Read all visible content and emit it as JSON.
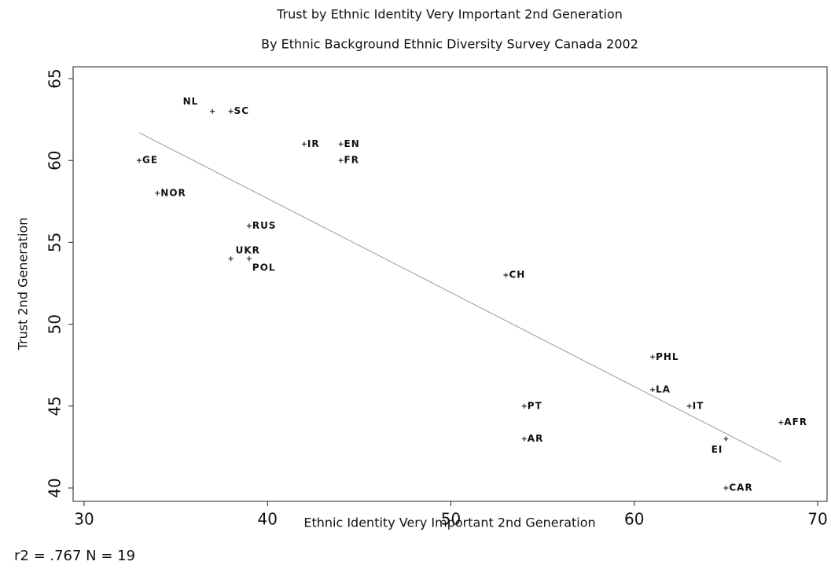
{
  "chart_data": {
    "type": "scatter",
    "title": "Trust by Ethnic Identity Very Important 2nd Generation",
    "subtitle": "By Ethnic Background Ethnic Diversity Survey Canada 2002",
    "x_label": "Ethnic Identity Very Important 2nd Generation",
    "y_label": "Trust 2nd Generation",
    "annotation": "r2 = .767  N = 19",
    "labels": [
      "NL",
      "SC",
      "IR",
      "EN",
      "FR",
      "GE",
      "NOR",
      "RUS",
      "UKR",
      "POL",
      "CH",
      "PHL",
      "LA",
      "IT",
      "PT",
      "AR",
      "AFR",
      "EI",
      "CAR"
    ],
    "x": [
      37,
      38,
      42,
      44,
      44,
      33,
      34,
      39,
      38,
      39,
      53,
      61,
      61,
      63,
      54,
      54,
      68,
      65,
      65
    ],
    "y": [
      63,
      63,
      61,
      61,
      60,
      60,
      58,
      56,
      54,
      54,
      53,
      48,
      46,
      45,
      45,
      43,
      44,
      43,
      40
    ],
    "color": "#333333",
    "fit_line": {
      "x": [
        33,
        68
      ],
      "y": [
        61.7,
        41.6
      ],
      "color": "#999999"
    },
    "xlim": [
      30,
      70
    ],
    "ylim": [
      40,
      65
    ],
    "xticks": [
      30,
      40,
      50,
      60,
      70
    ],
    "yticks": [
      40,
      45,
      50,
      55,
      60,
      65
    ]
  }
}
